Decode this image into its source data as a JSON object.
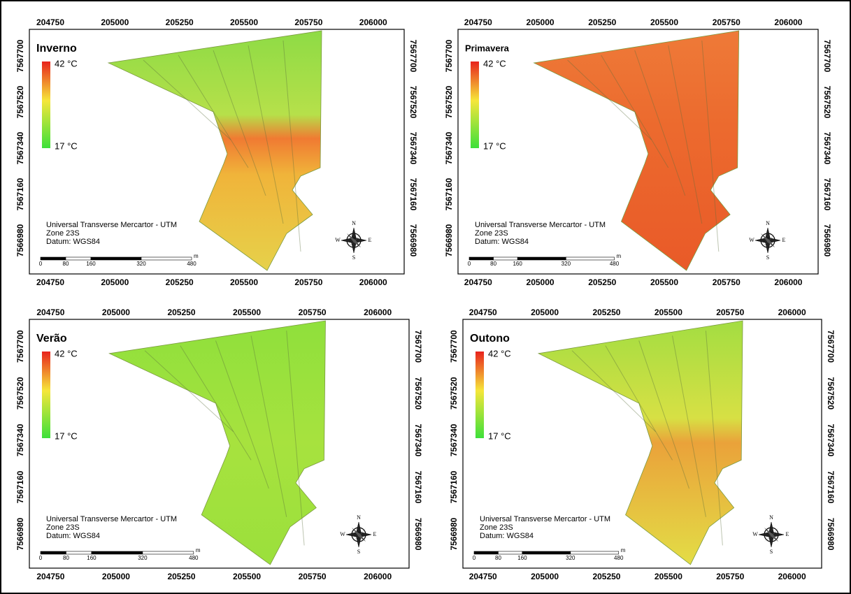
{
  "axes": {
    "x_ticks": [
      204750,
      205000,
      205250,
      205500,
      205750,
      206000
    ],
    "y_ticks": [
      7567700,
      7567520,
      7567340,
      7567160,
      7566980
    ]
  },
  "panels": [
    {
      "title": "Inverno",
      "legend": {
        "max": "42 °C",
        "min": "17 °C"
      },
      "projection": [
        "Universal Transverse Mercartor - UTM",
        "Zone 23S",
        "Datum: WGS84"
      ]
    },
    {
      "title": "Primavera",
      "legend": {
        "max": "42 °C",
        "min": "17 °C"
      },
      "projection": [
        "Universal Transverse Mercartor - UTM",
        "Zone 23S",
        "Datum: WGS84"
      ]
    },
    {
      "title": "Verão",
      "legend": {
        "max": "42 °C",
        "min": "17 °C"
      },
      "projection": [
        "Universal Transverse Mercartor - UTM",
        "Zone 23S",
        "Datum: WGS84"
      ]
    },
    {
      "title": "Outono",
      "legend": {
        "max": "42 °C",
        "min": "17 °C"
      },
      "projection": [
        "Universal Transverse Mercartor - UTM",
        "Zone 23S",
        "Datum: WGS84"
      ]
    }
  ],
  "scale_bar": {
    "labels": [
      0,
      80,
      160,
      320,
      480
    ],
    "unit": "m"
  },
  "compass": {
    "n": "N",
    "s": "S",
    "e": "E",
    "w": "W"
  }
}
